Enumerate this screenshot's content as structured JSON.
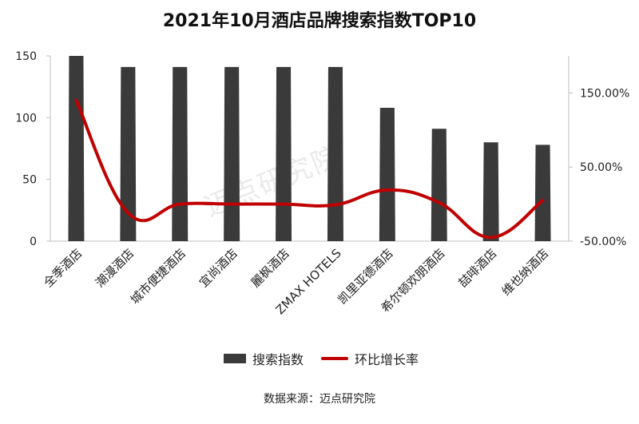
{
  "chart_data": {
    "type": "bar+line",
    "title": "2021年10月酒店品牌搜索指数TOP10",
    "categories": [
      "全季酒店",
      "潮漫酒店",
      "城市便捷酒店",
      "宜尚酒店",
      "麗枫酒店",
      "ZMAX HOTELS",
      "凯里亚德酒店",
      "希尔顿欢朋酒店",
      "喆啡酒店",
      "维也纳酒店"
    ],
    "series": [
      {
        "name": "搜索指数",
        "type": "bar",
        "axis": "left",
        "color": "#3a3a3a",
        "values": [
          150,
          141,
          141,
          141,
          141,
          141,
          108,
          91,
          80,
          78
        ]
      },
      {
        "name": "环比增长率",
        "type": "line",
        "axis": "right",
        "color": "#c00000",
        "values": [
          140,
          -12,
          0,
          0,
          0,
          -1,
          19,
          2,
          -45,
          5
        ]
      }
    ],
    "left_axis": {
      "min": 0,
      "max": 150,
      "ticks": [
        "0",
        "50",
        "100",
        "150"
      ]
    },
    "right_axis": {
      "min": -50,
      "max": 200,
      "ticks": [
        "-50.00%",
        "50.00%",
        "150.00%"
      ],
      "tick_values": [
        -50,
        50,
        150
      ]
    },
    "legend_position": "bottom"
  },
  "source": "数据来源：迈点研究院",
  "watermark": "迈点研究院",
  "colors": {
    "bar": "#3a3a3a",
    "line": "#c00000",
    "axis": "#bfbfbf"
  }
}
